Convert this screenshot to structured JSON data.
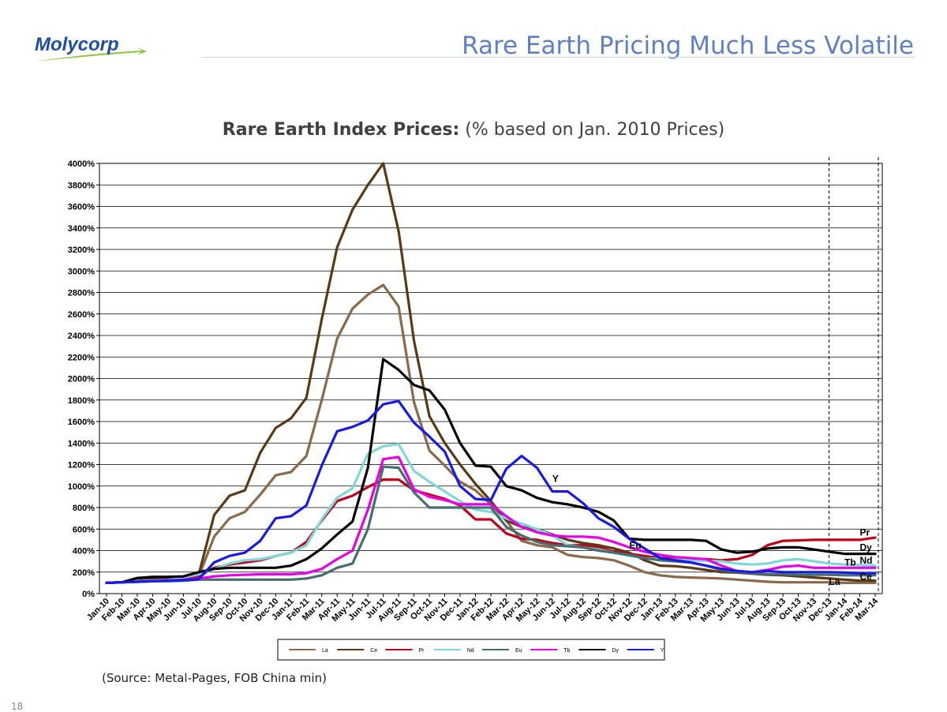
{
  "logo": {
    "text": "Molycorp",
    "colors": {
      "text": "#1f4fa3",
      "swoosh": "#8dc63f"
    }
  },
  "slide_title": "Rare Earth Pricing Much Less Volatile",
  "chart_title_bold": "Rare Earth Index Prices:",
  "chart_title_rest": " (% based on Jan. 2010 Prices)",
  "source": "(Source:  Metal-Pages, FOB China min)",
  "page_number": "18",
  "chart_data": {
    "type": "line",
    "x": [
      "Jan-10",
      "Feb-10",
      "Mar-10",
      "Apr-10",
      "May-10",
      "Jun-10",
      "Jul-10",
      "Aug-10",
      "Sep-10",
      "Oct-10",
      "Nov-10",
      "Dec-10",
      "Jan-11",
      "Feb-11",
      "Mar-11",
      "Apr-11",
      "May-11",
      "Jun-11",
      "Jul-11",
      "Aug-11",
      "Sep-11",
      "Oct-11",
      "Nov-11",
      "Dec-11",
      "Jan-12",
      "Feb-12",
      "Mar-12",
      "Apr-12",
      "May-12",
      "Jun-12",
      "Jul-12",
      "Aug-12",
      "Sep-12",
      "Oct-12",
      "Nov-12",
      "Dec-12",
      "Jan-13",
      "Feb-13",
      "Mar-13",
      "Apr-13",
      "May-13",
      "Jun-13",
      "Jul-13",
      "Aug-13",
      "Sep-13",
      "Oct-13",
      "Nov-13",
      "Dec-13",
      "Jan-14",
      "Feb-14",
      "Mar-14"
    ],
    "y_ticks": [
      "0%",
      "200%",
      "400%",
      "600%",
      "800%",
      "1000%",
      "1200%",
      "1400%",
      "1600%",
      "1800%",
      "2000%",
      "2200%",
      "2400%",
      "2600%",
      "2800%",
      "3000%",
      "3200%",
      "3400%",
      "3600%",
      "3800%",
      "4000%"
    ],
    "ylim": [
      0,
      4000
    ],
    "grid": true,
    "legend_position": "bottom",
    "vertical_markers": [
      "Dec-13",
      "Mar-14"
    ],
    "series": [
      {
        "name": "La",
        "color": "#8a6a4a",
        "values": [
          100,
          105,
          115,
          120,
          125,
          140,
          160,
          530,
          700,
          760,
          920,
          1100,
          1130,
          1280,
          1800,
          2370,
          2650,
          2780,
          2870,
          2670,
          1780,
          1330,
          1190,
          1040,
          960,
          830,
          680,
          490,
          450,
          430,
          360,
          340,
          330,
          310,
          260,
          200,
          170,
          155,
          150,
          145,
          140,
          130,
          120,
          110,
          105,
          105,
          105,
          105,
          100,
          100,
          100
        ]
      },
      {
        "name": "Ce",
        "color": "#5a3a14",
        "values": [
          100,
          105,
          120,
          140,
          140,
          150,
          180,
          730,
          910,
          960,
          1310,
          1540,
          1630,
          1820,
          2550,
          3220,
          3570,
          3800,
          4000,
          3370,
          2350,
          1650,
          1400,
          1200,
          1020,
          860,
          680,
          620,
          600,
          550,
          500,
          470,
          450,
          420,
          380,
          310,
          260,
          255,
          240,
          220,
          200,
          195,
          185,
          175,
          170,
          160,
          150,
          140,
          130,
          120,
          120
        ]
      },
      {
        "name": "Pr",
        "color": "#c0001a",
        "values": [
          100,
          105,
          115,
          120,
          130,
          140,
          160,
          240,
          270,
          290,
          310,
          350,
          380,
          480,
          680,
          860,
          910,
          990,
          1060,
          1060,
          960,
          920,
          880,
          820,
          690,
          690,
          560,
          510,
          500,
          470,
          450,
          450,
          430,
          390,
          370,
          350,
          330,
          330,
          325,
          320,
          310,
          320,
          360,
          450,
          490,
          495,
          500,
          500,
          500,
          500,
          520
        ]
      },
      {
        "name": "Nd",
        "color": "#7fd8d8",
        "values": [
          100,
          105,
          115,
          120,
          125,
          150,
          180,
          230,
          280,
          310,
          320,
          350,
          380,
          450,
          690,
          890,
          980,
          1300,
          1370,
          1390,
          1140,
          1040,
          950,
          860,
          780,
          760,
          700,
          650,
          600,
          540,
          450,
          430,
          410,
          380,
          350,
          330,
          320,
          315,
          310,
          305,
          300,
          280,
          270,
          280,
          310,
          320,
          300,
          280,
          270,
          265,
          260
        ]
      },
      {
        "name": "Eu",
        "color": "#466e6e",
        "values": [
          100,
          105,
          110,
          115,
          115,
          120,
          130,
          130,
          130,
          130,
          130,
          130,
          130,
          140,
          170,
          240,
          280,
          600,
          1180,
          1170,
          940,
          800,
          800,
          800,
          800,
          800,
          620,
          540,
          480,
          450,
          440,
          430,
          400,
          380,
          360,
          330,
          310,
          300,
          290,
          260,
          220,
          200,
          190,
          180,
          180,
          175,
          175,
          175,
          170,
          170,
          170
        ]
      },
      {
        "name": "Tb",
        "color": "#e800e8",
        "values": [
          100,
          105,
          110,
          115,
          120,
          130,
          140,
          160,
          170,
          175,
          180,
          180,
          180,
          190,
          230,
          320,
          400,
          780,
          1250,
          1270,
          970,
          900,
          870,
          830,
          830,
          830,
          720,
          620,
          570,
          540,
          530,
          530,
          520,
          480,
          430,
          390,
          360,
          340,
          330,
          320,
          260,
          210,
          200,
          220,
          250,
          260,
          240,
          240,
          240,
          240,
          240
        ]
      },
      {
        "name": "Dy",
        "color": "#000000",
        "values": [
          100,
          105,
          145,
          155,
          155,
          160,
          200,
          230,
          240,
          240,
          240,
          240,
          260,
          320,
          420,
          550,
          670,
          1170,
          2180,
          2080,
          1940,
          1890,
          1710,
          1400,
          1190,
          1180,
          1000,
          960,
          890,
          850,
          830,
          800,
          760,
          680,
          510,
          500,
          500,
          500,
          500,
          490,
          410,
          380,
          390,
          420,
          430,
          430,
          410,
          390,
          370,
          370,
          370
        ]
      },
      {
        "name": "Y",
        "color": "#1a1ae6",
        "values": [
          100,
          105,
          110,
          115,
          120,
          125,
          135,
          290,
          350,
          380,
          490,
          700,
          720,
          820,
          1190,
          1510,
          1550,
          1610,
          1760,
          1790,
          1590,
          1460,
          1320,
          1000,
          880,
          870,
          1160,
          1280,
          1170,
          950,
          950,
          840,
          700,
          620,
          510,
          420,
          330,
          310,
          290,
          260,
          230,
          210,
          200,
          210,
          200,
          200,
          200,
          200,
          195,
          190,
          190
        ]
      }
    ],
    "annotations": [
      {
        "text": "Y",
        "x": "Jun-12",
        "y": 1040,
        "color": "#000000"
      },
      {
        "text": "Eu",
        "x": "Nov-12",
        "y": 420,
        "color": "#000000"
      },
      {
        "text": "Pr",
        "x": "Feb-14",
        "y": 540,
        "color": "#000000"
      },
      {
        "text": "Dy",
        "x": "Feb-14",
        "y": 400,
        "color": "#000000"
      },
      {
        "text": "Tb",
        "x": "Jan-14",
        "y": 260,
        "color": "#000000"
      },
      {
        "text": "Nd",
        "x": "Feb-14",
        "y": 280,
        "color": "#000000"
      },
      {
        "text": "Ce",
        "x": "Feb-14",
        "y": 130,
        "color": "#000000"
      },
      {
        "text": "La",
        "x": "Dec-13",
        "y": 80,
        "color": "#000000"
      }
    ]
  }
}
